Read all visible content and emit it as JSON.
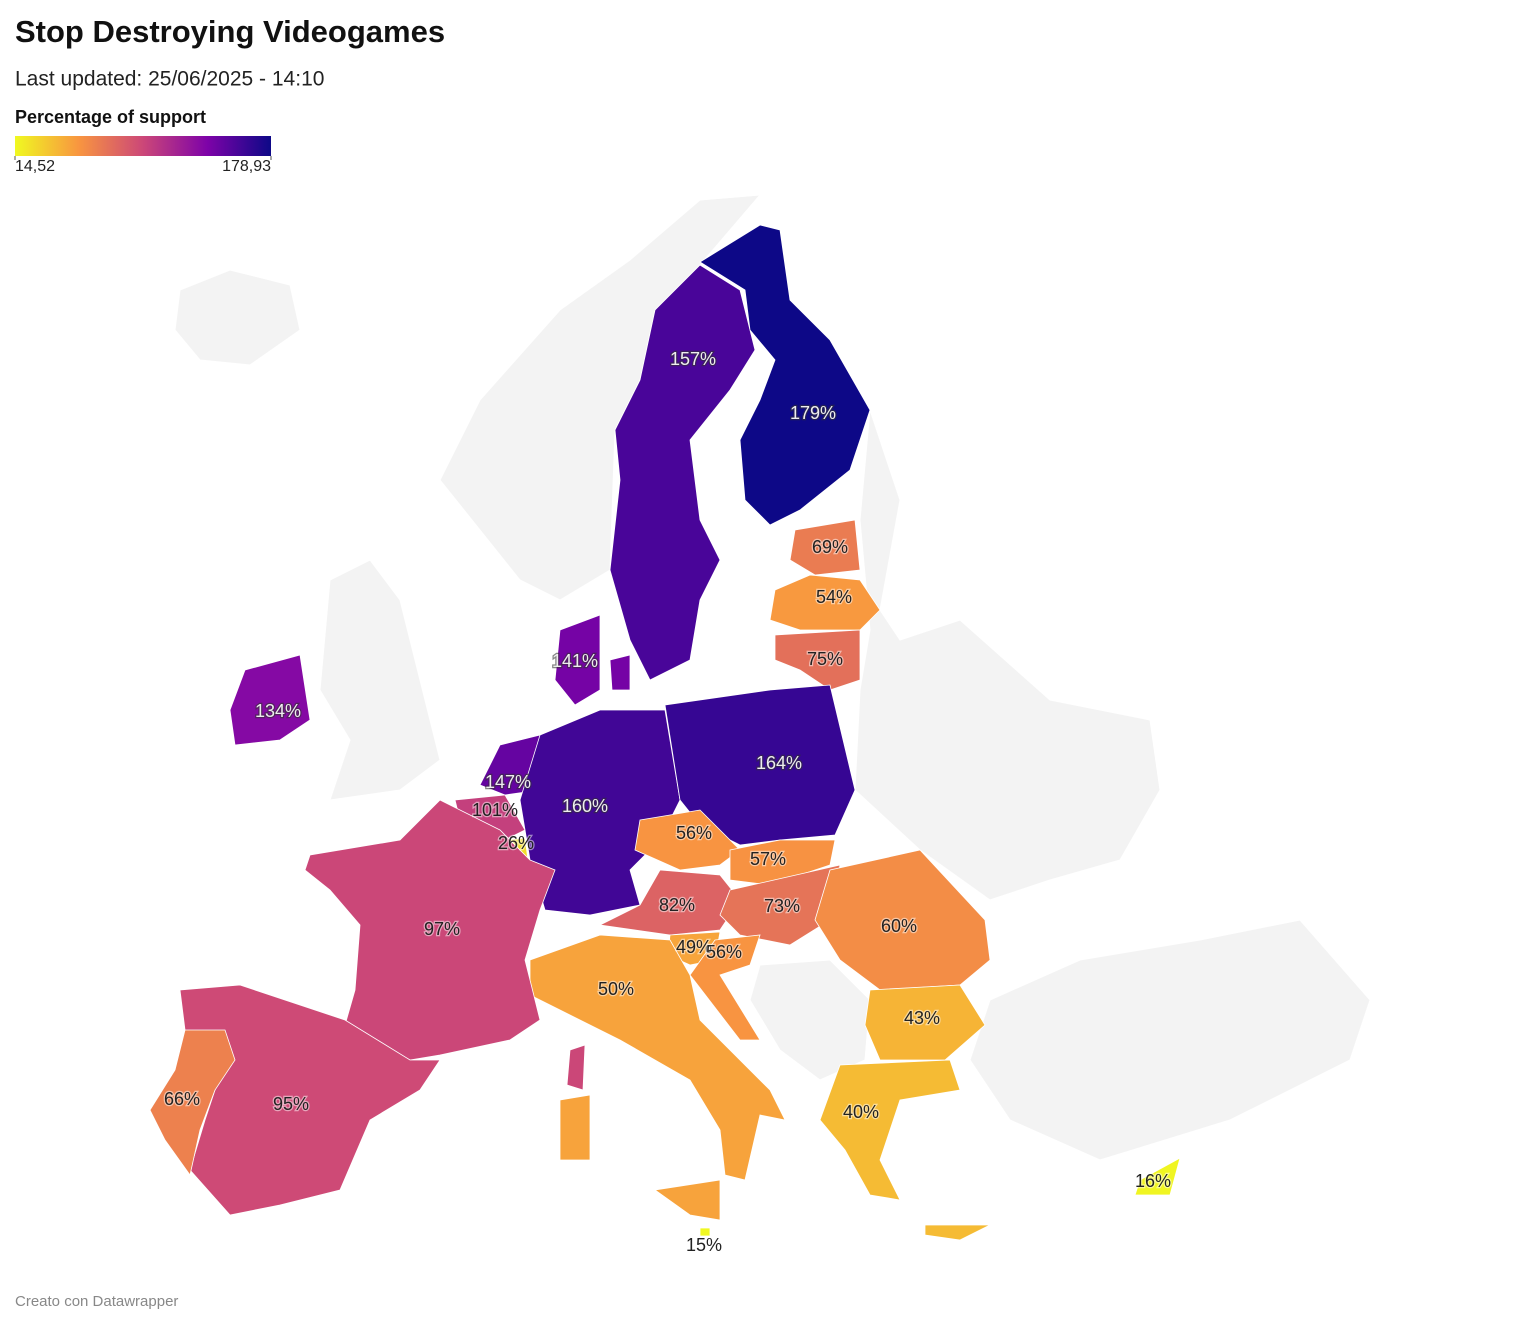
{
  "chart_data": {
    "type": "map",
    "title": "Stop Destroying Videogames",
    "subtitle": "Last updated: 25/06/2025 - 14:10",
    "legend_title": "Percentage of support",
    "colorlim": [
      14.52,
      178.93
    ],
    "colorticks": [
      {
        "value": 14.52,
        "label": "14,52"
      },
      {
        "value": 178.93,
        "label": "178,93"
      }
    ],
    "colors": [
      "#f0f921",
      "#f89540",
      "#cc4778",
      "#7e03a8",
      "#0d0887"
    ],
    "values": [
      157,
      179,
      69,
      54,
      75,
      141,
      134,
      147,
      101,
      26,
      160,
      164,
      56,
      57,
      82,
      73,
      60,
      49,
      56,
      50,
      43,
      40,
      97,
      95,
      66,
      15,
      16
    ],
    "value_labels": [
      "157%",
      "179%",
      "69%",
      "54%",
      "75%",
      "141%",
      "134%",
      "147%",
      "101%",
      "26%",
      "160%",
      "164%",
      "56%",
      "57%",
      "82%",
      "73%",
      "60%",
      "49%",
      "56%",
      "50%",
      "43%",
      "40%",
      "97%",
      "95%",
      "66%",
      "15%",
      "16%"
    ],
    "footer": "Creato con Datawrapper"
  }
}
